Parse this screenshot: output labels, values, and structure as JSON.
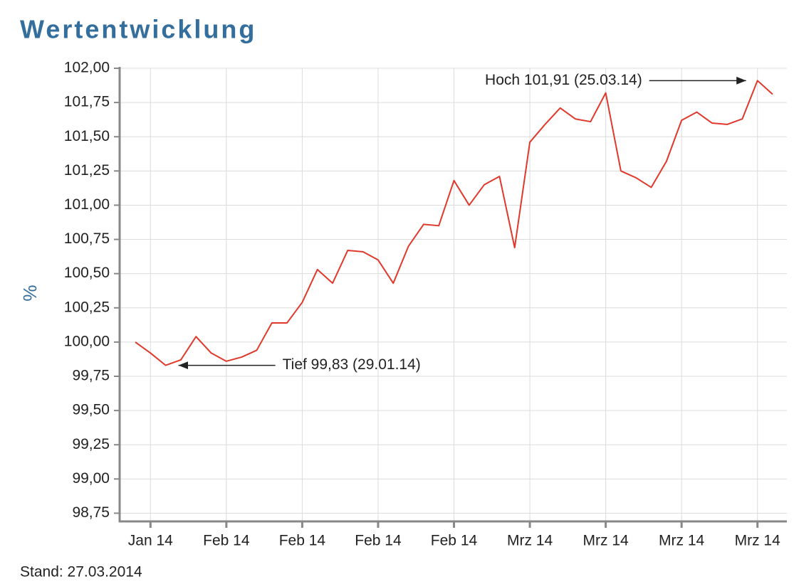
{
  "chart_data": {
    "type": "line",
    "title": "Wertentwicklung",
    "y_label": "%",
    "footer": "Stand: 27.03.2014",
    "categories": [
      null,
      "Jan 14",
      null,
      null,
      null,
      null,
      "Feb 14",
      null,
      null,
      null,
      null,
      "Feb 14",
      null,
      null,
      null,
      null,
      "Feb 14",
      null,
      null,
      null,
      null,
      "Feb 14",
      null,
      null,
      null,
      null,
      "Mrz 14",
      null,
      null,
      null,
      null,
      "Mrz 14",
      null,
      null,
      null,
      null,
      "Mrz 14",
      null,
      null,
      null,
      null,
      "Mrz 14",
      null
    ],
    "series": [
      {
        "name": "Wertentwicklung",
        "color": "#e0392b",
        "values": [
          100.0,
          99.92,
          99.83,
          99.87,
          100.04,
          99.92,
          99.86,
          99.89,
          99.94,
          100.14,
          100.14,
          100.29,
          100.53,
          100.43,
          100.67,
          100.66,
          100.6,
          100.43,
          100.7,
          100.86,
          100.85,
          101.18,
          101.0,
          101.15,
          101.21,
          100.69,
          101.46,
          101.59,
          101.71,
          101.63,
          101.61,
          101.82,
          101.25,
          101.2,
          101.13,
          101.32,
          101.62,
          101.68,
          101.6,
          101.59,
          101.63,
          101.91,
          101.81
        ]
      }
    ],
    "ylim": [
      98.69,
      102
    ],
    "yticks": [
      {
        "value": 98.75,
        "label": "98,75"
      },
      {
        "value": 99,
        "label": "99,00"
      },
      {
        "value": 99.25,
        "label": "99,25"
      },
      {
        "value": 99.5,
        "label": "99,50"
      },
      {
        "value": 99.75,
        "label": "99,75"
      },
      {
        "value": 100,
        "label": "100,00"
      },
      {
        "value": 100.25,
        "label": "100,25"
      },
      {
        "value": 100.5,
        "label": "100,50"
      },
      {
        "value": 100.75,
        "label": "100,75"
      },
      {
        "value": 101,
        "label": "101,00"
      },
      {
        "value": 101.25,
        "label": "101,25"
      },
      {
        "value": 101.5,
        "label": "101,50"
      },
      {
        "value": 101.75,
        "label": "101,75"
      },
      {
        "value": 102,
        "label": "102,00"
      }
    ],
    "grid": true,
    "annotations": [
      "Hoch 101,91 (25.03.14)",
      "Tief 99,83 (29.01.14)"
    ]
  }
}
